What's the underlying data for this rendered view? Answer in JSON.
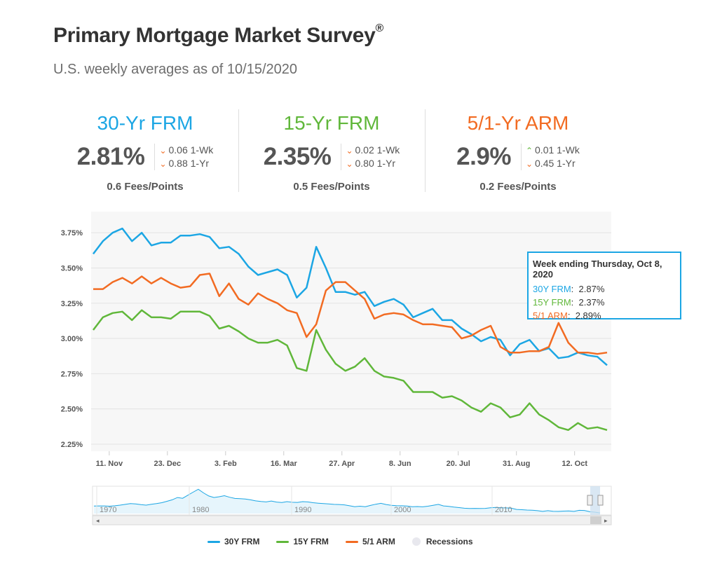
{
  "header": {
    "title": "Primary Mortgage Market Survey",
    "title_mark": "®",
    "subtitle": "U.S. weekly averages as of 10/15/2020"
  },
  "cards": [
    {
      "name": "30-Yr FRM",
      "color": "#1ca6e4",
      "rate": "2.81%",
      "wk_change": "0.06 1-Wk",
      "wk_dir": "down",
      "yr_change": "0.88 1-Yr",
      "yr_dir": "down",
      "fees": "0.6 Fees/Points"
    },
    {
      "name": "15-Yr FRM",
      "color": "#60b73a",
      "rate": "2.35%",
      "wk_change": "0.02 1-Wk",
      "wk_dir": "down",
      "yr_change": "0.80 1-Yr",
      "yr_dir": "down",
      "fees": "0.5 Fees/Points"
    },
    {
      "name": "5/1-Yr ARM",
      "color": "#f26b22",
      "rate": "2.9%",
      "wk_change": "0.01 1-Wk",
      "wk_dir": "up",
      "yr_change": "0.45 1-Yr",
      "yr_dir": "down",
      "fees": "0.2 Fees/Points"
    }
  ],
  "chart_data": {
    "type": "line",
    "x_ticks": [
      "11. Nov",
      "23. Dec",
      "3. Feb",
      "16. Mar",
      "27. Apr",
      "8. Jun",
      "20. Jul",
      "31. Aug",
      "12. Oct"
    ],
    "y_ticks": [
      "3.75%",
      "3.50%",
      "3.25%",
      "3.00%",
      "2.75%",
      "2.50%",
      "2.25%"
    ],
    "ylim": [
      2.2,
      3.9
    ],
    "grid": true,
    "week_count": 54,
    "series": [
      {
        "name": "30Y FRM",
        "color": "#1ca6e4",
        "values": [
          3.6,
          3.69,
          3.75,
          3.78,
          3.69,
          3.75,
          3.66,
          3.68,
          3.68,
          3.73,
          3.73,
          3.74,
          3.72,
          3.64,
          3.65,
          3.6,
          3.51,
          3.45,
          3.47,
          3.49,
          3.45,
          3.29,
          3.36,
          3.65,
          3.5,
          3.33,
          3.33,
          3.31,
          3.33,
          3.23,
          3.26,
          3.28,
          3.24,
          3.15,
          3.18,
          3.21,
          3.13,
          3.13,
          3.07,
          3.03,
          2.98,
          3.01,
          2.99,
          2.88,
          2.96,
          2.99,
          2.91,
          2.93,
          2.86,
          2.87,
          2.9,
          2.88,
          2.87,
          2.81
        ]
      },
      {
        "name": "15Y FRM",
        "color": "#60b73a",
        "values": [
          3.06,
          3.15,
          3.18,
          3.19,
          3.13,
          3.2,
          3.15,
          3.15,
          3.14,
          3.19,
          3.19,
          3.19,
          3.16,
          3.07,
          3.09,
          3.05,
          3.0,
          2.97,
          2.97,
          2.99,
          2.95,
          2.79,
          2.77,
          3.06,
          2.92,
          2.82,
          2.77,
          2.8,
          2.86,
          2.77,
          2.73,
          2.72,
          2.7,
          2.62,
          2.62,
          2.62,
          2.58,
          2.59,
          2.56,
          2.51,
          2.48,
          2.54,
          2.51,
          2.44,
          2.46,
          2.54,
          2.46,
          2.42,
          2.37,
          2.35,
          2.4,
          2.36,
          2.37,
          2.35
        ]
      },
      {
        "name": "5/1 ARM",
        "color": "#f26b22",
        "values": [
          3.35,
          3.35,
          3.4,
          3.43,
          3.39,
          3.44,
          3.39,
          3.43,
          3.39,
          3.36,
          3.37,
          3.45,
          3.46,
          3.3,
          3.39,
          3.28,
          3.24,
          3.32,
          3.28,
          3.25,
          3.2,
          3.18,
          3.01,
          3.1,
          3.34,
          3.4,
          3.4,
          3.34,
          3.28,
          3.14,
          3.17,
          3.18,
          3.17,
          3.13,
          3.1,
          3.1,
          3.09,
          3.08,
          3.0,
          3.02,
          3.06,
          3.09,
          2.94,
          2.9,
          2.9,
          2.91,
          2.91,
          2.94,
          3.11,
          2.97,
          2.9,
          2.9,
          2.89,
          2.9
        ]
      }
    ],
    "navigator": {
      "x_ticks": [
        "1970",
        "1980",
        "1990",
        "2000",
        "2010"
      ],
      "values": [
        7.4,
        7.5,
        7.5,
        7.3,
        7.6,
        8.0,
        8.5,
        9.0,
        8.8,
        8.3,
        8.0,
        8.6,
        9.0,
        9.6,
        10.5,
        11.5,
        13.0,
        12.5,
        14.5,
        16.5,
        18.4,
        16.0,
        14.0,
        13.0,
        13.5,
        14.2,
        13.2,
        12.4,
        12.2,
        12.0,
        11.5,
        10.8,
        10.4,
        10.1,
        10.7,
        10.0,
        9.7,
        10.3,
        9.9,
        9.8,
        10.3,
        10.1,
        9.6,
        9.3,
        9.0,
        8.8,
        8.5,
        8.4,
        8.2,
        7.6,
        7.0,
        7.3,
        7.0,
        7.8,
        8.6,
        9.2,
        8.4,
        7.9,
        7.7,
        7.6,
        7.4,
        7.0,
        7.1,
        6.9,
        7.3,
        7.9,
        8.5,
        7.5,
        7.2,
        6.7,
        6.4,
        6.0,
        5.8,
        5.9,
        5.8,
        5.9,
        6.3,
        6.5,
        6.3,
        6.2,
        6.0,
        5.2,
        5.0,
        4.8,
        4.7,
        4.4,
        3.9,
        4.4,
        4.0,
        3.9,
        4.1,
        4.2,
        3.9,
        4.6,
        4.5,
        3.8,
        3.4,
        2.9
      ]
    },
    "recession_color": "#e8e8ee"
  },
  "tooltip": {
    "title": "Week ending Thursday, Oct 8, 2020",
    "rows": [
      {
        "label": "30Y FRM",
        "value": "2.87%",
        "color": "#1ca6e4"
      },
      {
        "label": "15Y FRM",
        "value": "2.37%",
        "color": "#60b73a"
      },
      {
        "label": "5/1 ARM",
        "value": "2.89%",
        "color": "#f26b22"
      }
    ]
  },
  "legend": [
    {
      "label": "30Y FRM",
      "color": "#1ca6e4"
    },
    {
      "label": "15Y FRM",
      "color": "#60b73a"
    },
    {
      "label": "5/1 ARM",
      "color": "#f26b22"
    },
    {
      "label": "Recessions",
      "color": "#e8e8ee"
    }
  ]
}
